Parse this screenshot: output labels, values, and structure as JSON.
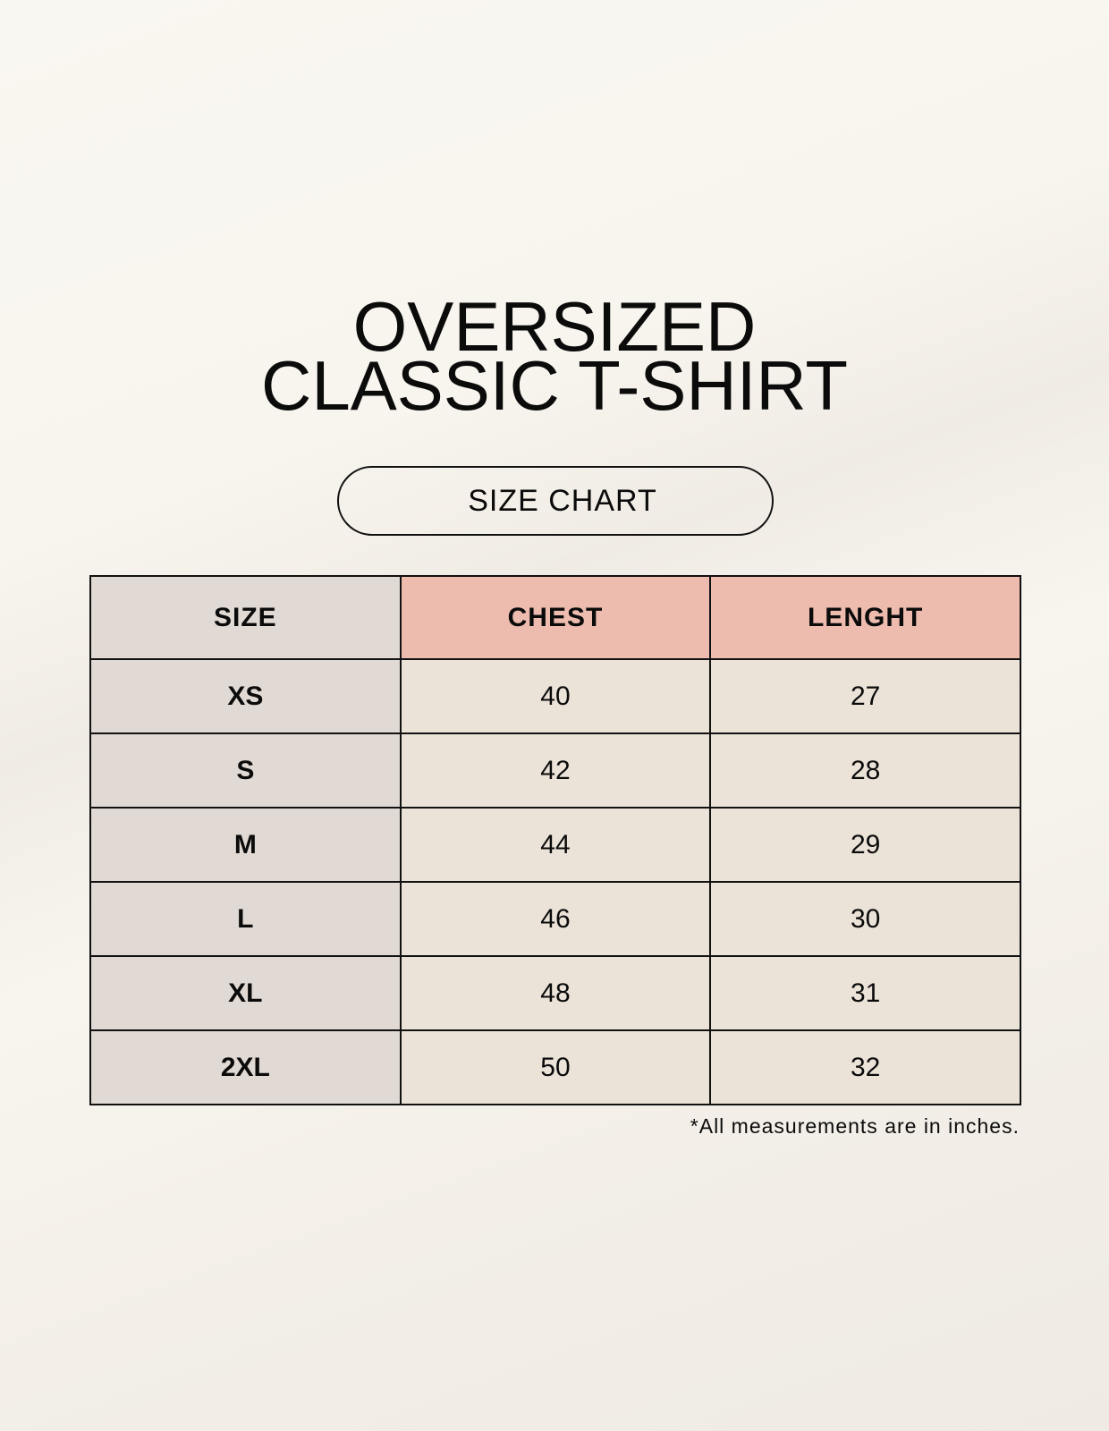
{
  "title": {
    "line1": "OVERSIZED",
    "line2": "CLASSIC T-SHIRT"
  },
  "badge": "SIZE CHART",
  "table": {
    "headers": [
      "SIZE",
      "CHEST",
      "LENGHT"
    ],
    "rows": [
      [
        "XS",
        "40",
        "27"
      ],
      [
        "S",
        "42",
        "28"
      ],
      [
        "M",
        "44",
        "29"
      ],
      [
        "L",
        "46",
        "30"
      ],
      [
        "XL",
        "48",
        "31"
      ],
      [
        "2XL",
        "50",
        "32"
      ]
    ]
  },
  "note": "*All measurements are in inches.",
  "colors": {
    "size_column": "#e1d9d3",
    "header_accent": "#eebcaf",
    "value_cells": "#ebe3d8"
  }
}
